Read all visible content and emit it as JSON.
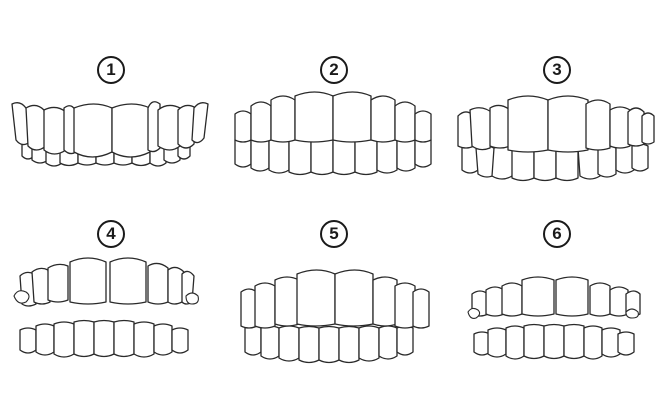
{
  "figure": {
    "panels": [
      {
        "label": "1",
        "type": "normal-bite"
      },
      {
        "label": "2",
        "type": "edge-to-edge-bite"
      },
      {
        "label": "3",
        "type": "crowded-teeth"
      },
      {
        "label": "4",
        "type": "open-bite"
      },
      {
        "label": "5",
        "type": "overbite"
      },
      {
        "label": "6",
        "type": "gapped-open-bite"
      }
    ],
    "colors": {
      "line": "#2a2a2a",
      "fill": "#ffffff",
      "background": "#ffffff"
    }
  }
}
